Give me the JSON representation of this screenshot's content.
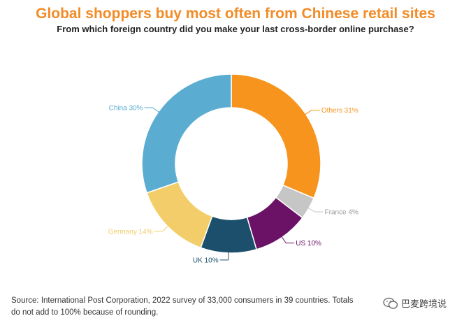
{
  "title": "Global shoppers buy most often from Chinese retail sites",
  "subtitle": "From which foreign country did you make your last cross-border online purchase?",
  "source": "Source: International Post Corporation, 2022 survey of 33,000 consumers in 39 countries. Totals do not add to 100% because of rounding.",
  "watermark": "巴麦跨境说",
  "colors": {
    "title": "#f28c28",
    "Others": "#f7941e",
    "France": "#c6c6c6",
    "US": "#6b1266",
    "UK": "#1c4f6b",
    "Germany": "#f2cd69",
    "China": "#5aadd1"
  },
  "chart_data": {
    "type": "pie",
    "donut": true,
    "title": "Global shoppers buy most often from Chinese retail sites",
    "subtitle": "From which foreign country did you make your last cross-border online purchase?",
    "slices": [
      {
        "name": "Others",
        "value": 31,
        "label": "Others 31%"
      },
      {
        "name": "France",
        "value": 4,
        "label": "France 4%"
      },
      {
        "name": "US",
        "value": 10,
        "label": "US 10%"
      },
      {
        "name": "UK",
        "value": 10,
        "label": "UK 10%"
      },
      {
        "name": "Germany",
        "value": 14,
        "label": "Germany 14%"
      },
      {
        "name": "China",
        "value": 30,
        "label": "China 30%"
      }
    ]
  }
}
